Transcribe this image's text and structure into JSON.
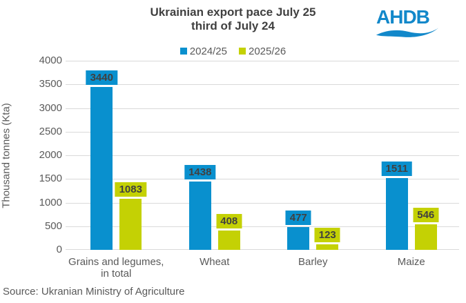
{
  "title": {
    "line1": "Ukrainian export pace July 25",
    "line2": "third of July 24"
  },
  "logo": {
    "text": "AHDB",
    "color": "#1288CA"
  },
  "source": "Source: Ukranian Ministry of Agriculture",
  "colors": {
    "series_blue": "#0990CE",
    "series_green": "#C4D104",
    "gridline": "#D9D9D9",
    "axis_text": "#595959",
    "title_text": "#404040"
  },
  "chart_data": {
    "type": "bar",
    "title": "Ukrainian export pace July 25 third of July 24",
    "categories": [
      "Grains and legumes, in total",
      "Wheat",
      "Barley",
      "Maize"
    ],
    "series": [
      {
        "name": "2024/25",
        "color": "#0990CE",
        "values": [
          3440,
          1438,
          477,
          1511
        ]
      },
      {
        "name": "2025/26",
        "color": "#C4D104",
        "values": [
          1083,
          408,
          123,
          546
        ]
      }
    ],
    "xlabel": "",
    "ylabel": "Thousand tonnes (Kta)",
    "ylim": [
      0,
      4000
    ],
    "yticks": [
      0,
      500,
      1000,
      1500,
      2000,
      2500,
      3000,
      3500,
      4000
    ],
    "grid": true,
    "legend_position": "top",
    "data_labels": true
  }
}
